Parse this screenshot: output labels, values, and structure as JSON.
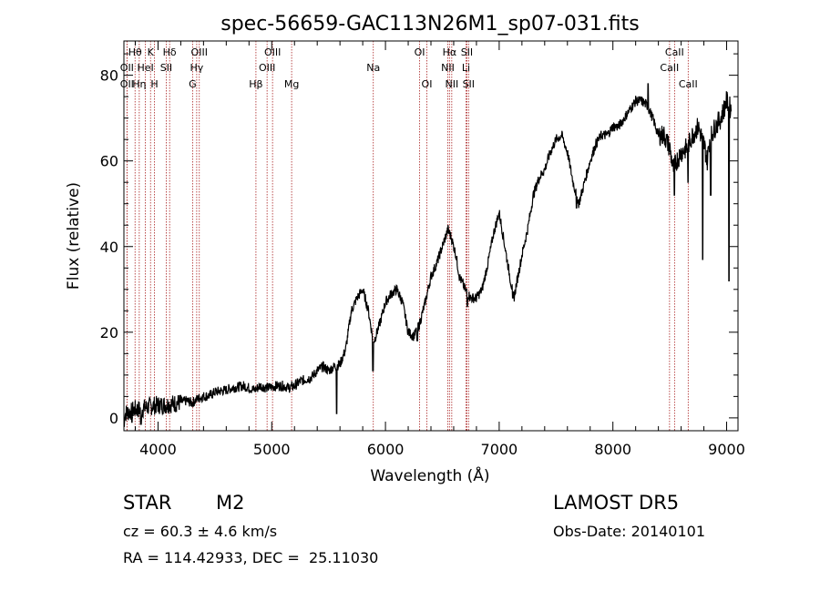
{
  "chart_data": {
    "type": "line",
    "title": "spec-56659-GAC113N26M1_sp07-031.fits",
    "xlabel": "Wavelength (Å)",
    "ylabel": "Flux (relative)",
    "xlim": [
      3700,
      9100
    ],
    "ylim": [
      -3,
      88
    ],
    "xticks": [
      4000,
      5000,
      6000,
      7000,
      8000,
      9000
    ],
    "yticks": [
      0,
      20,
      40,
      60,
      80
    ],
    "grid": false,
    "line_color": "#000000",
    "marker_color": "#aa2222",
    "series": [
      {
        "values": [
          [
            3700,
            1
          ],
          [
            3760,
            1.5
          ],
          [
            3800,
            2
          ],
          [
            3850,
            2
          ],
          [
            3900,
            2.5
          ],
          [
            3950,
            2.8
          ],
          [
            4000,
            3
          ],
          [
            4050,
            3
          ],
          [
            4100,
            3.2
          ],
          [
            4150,
            3.4
          ],
          [
            4200,
            3.6
          ],
          [
            4250,
            4
          ],
          [
            4300,
            3.5
          ],
          [
            4350,
            4.5
          ],
          [
            4400,
            5
          ],
          [
            4450,
            5.2
          ],
          [
            4500,
            6
          ],
          [
            4550,
            6.3
          ],
          [
            4600,
            6.5
          ],
          [
            4650,
            7
          ],
          [
            4700,
            7.2
          ],
          [
            4750,
            7.5
          ],
          [
            4800,
            7
          ],
          [
            4850,
            6.5
          ],
          [
            4900,
            7.5
          ],
          [
            4950,
            7
          ],
          [
            5000,
            7.2
          ],
          [
            5050,
            7.5
          ],
          [
            5100,
            7.5
          ],
          [
            5150,
            7
          ],
          [
            5200,
            7.5
          ],
          [
            5250,
            8.5
          ],
          [
            5300,
            9
          ],
          [
            5350,
            9.5
          ],
          [
            5400,
            11
          ],
          [
            5450,
            12
          ],
          [
            5500,
            11
          ],
          [
            5550,
            12
          ],
          [
            5600,
            12.5
          ],
          [
            5650,
            16
          ],
          [
            5700,
            25
          ],
          [
            5750,
            28
          ],
          [
            5800,
            30
          ],
          [
            5850,
            25
          ],
          [
            5880,
            20
          ],
          [
            5900,
            18
          ],
          [
            5950,
            22
          ],
          [
            6000,
            27
          ],
          [
            6050,
            29
          ],
          [
            6100,
            30
          ],
          [
            6150,
            27
          ],
          [
            6200,
            20
          ],
          [
            6250,
            19
          ],
          [
            6300,
            22
          ],
          [
            6350,
            27
          ],
          [
            6400,
            33
          ],
          [
            6450,
            36
          ],
          [
            6500,
            40
          ],
          [
            6550,
            44
          ],
          [
            6580,
            42
          ],
          [
            6620,
            38
          ],
          [
            6650,
            33
          ],
          [
            6700,
            30
          ],
          [
            6750,
            28
          ],
          [
            6800,
            28
          ],
          [
            6850,
            30
          ],
          [
            6900,
            36
          ],
          [
            6950,
            43
          ],
          [
            7000,
            48
          ],
          [
            7050,
            40
          ],
          [
            7100,
            32
          ],
          [
            7130,
            28
          ],
          [
            7150,
            31
          ],
          [
            7200,
            38
          ],
          [
            7250,
            44
          ],
          [
            7300,
            52
          ],
          [
            7350,
            56
          ],
          [
            7400,
            58
          ],
          [
            7450,
            62
          ],
          [
            7500,
            65
          ],
          [
            7550,
            66
          ],
          [
            7600,
            62
          ],
          [
            7650,
            55
          ],
          [
            7700,
            50
          ],
          [
            7750,
            55
          ],
          [
            7800,
            60
          ],
          [
            7850,
            64
          ],
          [
            7900,
            66
          ],
          [
            7950,
            66
          ],
          [
            8000,
            68
          ],
          [
            8050,
            68
          ],
          [
            8100,
            70
          ],
          [
            8150,
            72
          ],
          [
            8200,
            74
          ],
          [
            8250,
            74
          ],
          [
            8300,
            73
          ],
          [
            8350,
            70
          ],
          [
            8400,
            66
          ],
          [
            8450,
            66
          ],
          [
            8500,
            63
          ],
          [
            8530,
            58
          ],
          [
            8560,
            60
          ],
          [
            8600,
            62
          ],
          [
            8650,
            63
          ],
          [
            8700,
            66
          ],
          [
            8750,
            68
          ],
          [
            8800,
            64
          ],
          [
            8830,
            60
          ],
          [
            8850,
            65
          ],
          [
            8900,
            68
          ],
          [
            8950,
            70
          ],
          [
            9000,
            74
          ],
          [
            9040,
            72
          ]
        ]
      }
    ],
    "dips": [
      [
        3700,
        -2
      ],
      [
        3770,
        -1
      ],
      [
        3850,
        -1.5
      ],
      [
        5570,
        1
      ],
      [
        5890,
        11
      ],
      [
        6280,
        18
      ],
      [
        6720,
        26
      ],
      [
        7120,
        28
      ],
      [
        7680,
        49
      ],
      [
        8310,
        78
      ],
      [
        8540,
        52
      ],
      [
        8660,
        55
      ],
      [
        8790,
        37
      ],
      [
        8860,
        52
      ],
      [
        9020,
        32
      ]
    ],
    "lines": [
      {
        "label": "Hθ",
        "x": 3798,
        "row": 1
      },
      {
        "label": "OII",
        "x": 3727,
        "row": 2
      },
      {
        "label": "OII",
        "x": 3727,
        "row": 3
      },
      {
        "label": "Hη",
        "x": 3835,
        "row": 3
      },
      {
        "label": "HeI",
        "x": 3889,
        "row": 2
      },
      {
        "label": "K",
        "x": 3934,
        "row": 1
      },
      {
        "label": "H",
        "x": 3969,
        "row": 3
      },
      {
        "label": "Hδ",
        "x": 4102,
        "row": 1
      },
      {
        "label": "SII",
        "x": 4072,
        "row": 2
      },
      {
        "label": "OIII",
        "x": 4363,
        "row": 1
      },
      {
        "label": "Hγ",
        "x": 4340,
        "row": 2
      },
      {
        "label": "G",
        "x": 4304,
        "row": 3
      },
      {
        "label": "Hβ",
        "x": 4861,
        "row": 3
      },
      {
        "label": "OIII",
        "x": 4959,
        "row": 2
      },
      {
        "label": "OIII",
        "x": 5007,
        "row": 1
      },
      {
        "label": "Mg",
        "x": 5175,
        "row": 3
      },
      {
        "label": "Na",
        "x": 5893,
        "row": 2
      },
      {
        "label": "OI",
        "x": 6300,
        "row": 1
      },
      {
        "label": "OI",
        "x": 6364,
        "row": 3
      },
      {
        "label": "Hα",
        "x": 6563,
        "row": 1
      },
      {
        "label": "NII",
        "x": 6548,
        "row": 2
      },
      {
        "label": "NII",
        "x": 6583,
        "row": 3
      },
      {
        "label": "SII",
        "x": 6716,
        "row": 1
      },
      {
        "label": "Li",
        "x": 6708,
        "row": 2
      },
      {
        "label": "SII",
        "x": 6731,
        "row": 3
      },
      {
        "label": "CaII",
        "x": 8542,
        "row": 1
      },
      {
        "label": "CaII",
        "x": 8498,
        "row": 2
      },
      {
        "label": "CaII",
        "x": 8662,
        "row": 3
      }
    ]
  },
  "info": {
    "class_label": "STAR",
    "subclass_label": "M2",
    "redshift_line": "cz = 60.3 ± 4.6 km/s",
    "coords_line": "RA = 114.42933, DEC =  25.11030",
    "survey_label": "LAMOST DR5",
    "obs_date_line": "Obs-Date: 20140101"
  }
}
